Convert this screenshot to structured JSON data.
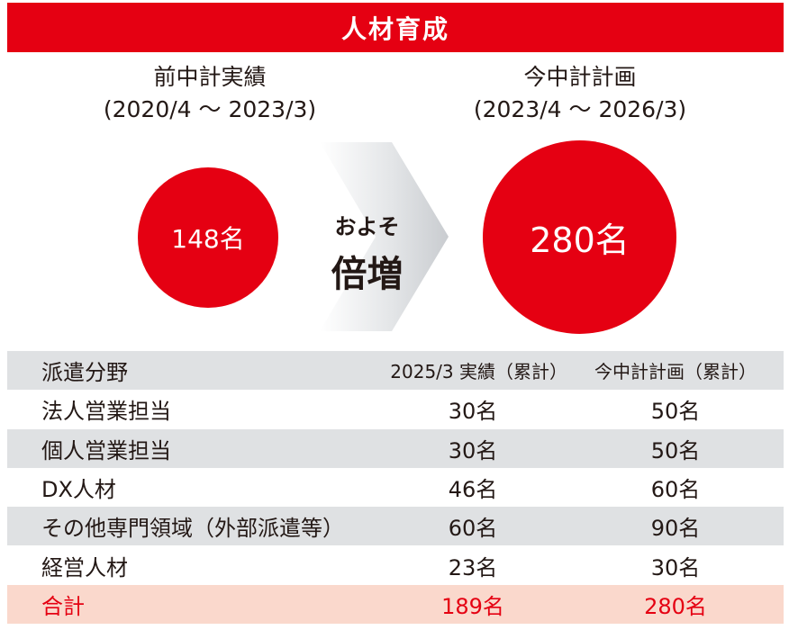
{
  "title": "人材育成",
  "previous": {
    "label": "前中計実績",
    "period": "(2020/4 ～ 2023/3)",
    "value": "148名"
  },
  "current": {
    "label": "今中計計画",
    "period": "(2023/4 ～ 2026/3)",
    "value": "280名"
  },
  "arrow": {
    "sub": "およそ",
    "main": "倍増"
  },
  "table": {
    "headers": [
      "派遣分野",
      "2025/3 実績（累計）",
      "今中計計画（累計）"
    ],
    "rows": [
      [
        "法人営業担当",
        "30名",
        "50名"
      ],
      [
        "個人営業担当",
        "30名",
        "50名"
      ],
      [
        "DX人材",
        "46名",
        "60名"
      ],
      [
        "その他専門領域（外部派遣等）",
        "60名",
        "90名"
      ],
      [
        "経営人材",
        "23名",
        "30名"
      ]
    ],
    "total": [
      "合計",
      "189名",
      "280名"
    ]
  },
  "colors": {
    "accent": "#e50012",
    "stripe": "#dfe1e3",
    "total_bg": "#fad8cc"
  }
}
